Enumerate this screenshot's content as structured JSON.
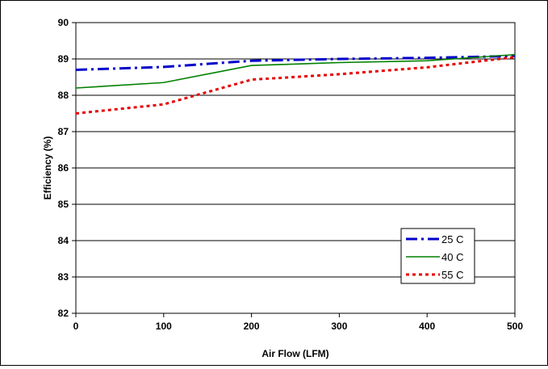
{
  "chart_data": {
    "type": "line",
    "title": "",
    "xlabel": "Air Flow (LFM)",
    "ylabel": "Efficiency (%)",
    "xlim": [
      0,
      500
    ],
    "ylim": [
      82,
      90
    ],
    "xticks": [
      "0",
      "100",
      "200",
      "300",
      "400",
      "500"
    ],
    "yticks": [
      "82",
      "83",
      "84",
      "85",
      "86",
      "87",
      "88",
      "89",
      "90"
    ],
    "grid": "horizontal",
    "legend_position": "right",
    "series": [
      {
        "name": "25 C",
        "color": "#0000cc",
        "dash": "dash-dot",
        "x": [
          0,
          100,
          200,
          300,
          400,
          500
        ],
        "y": [
          88.7,
          88.78,
          88.95,
          89.0,
          89.03,
          89.08
        ]
      },
      {
        "name": "40 C",
        "color": "#008000",
        "dash": "solid",
        "x": [
          0,
          100,
          200,
          300,
          400,
          500
        ],
        "y": [
          88.2,
          88.35,
          88.82,
          88.9,
          88.95,
          89.12
        ]
      },
      {
        "name": "55 C",
        "color": "#e60000",
        "dash": "dotted",
        "x": [
          0,
          100,
          200,
          300,
          400,
          500
        ],
        "y": [
          87.5,
          87.75,
          88.43,
          88.58,
          88.77,
          89.05
        ]
      }
    ]
  }
}
